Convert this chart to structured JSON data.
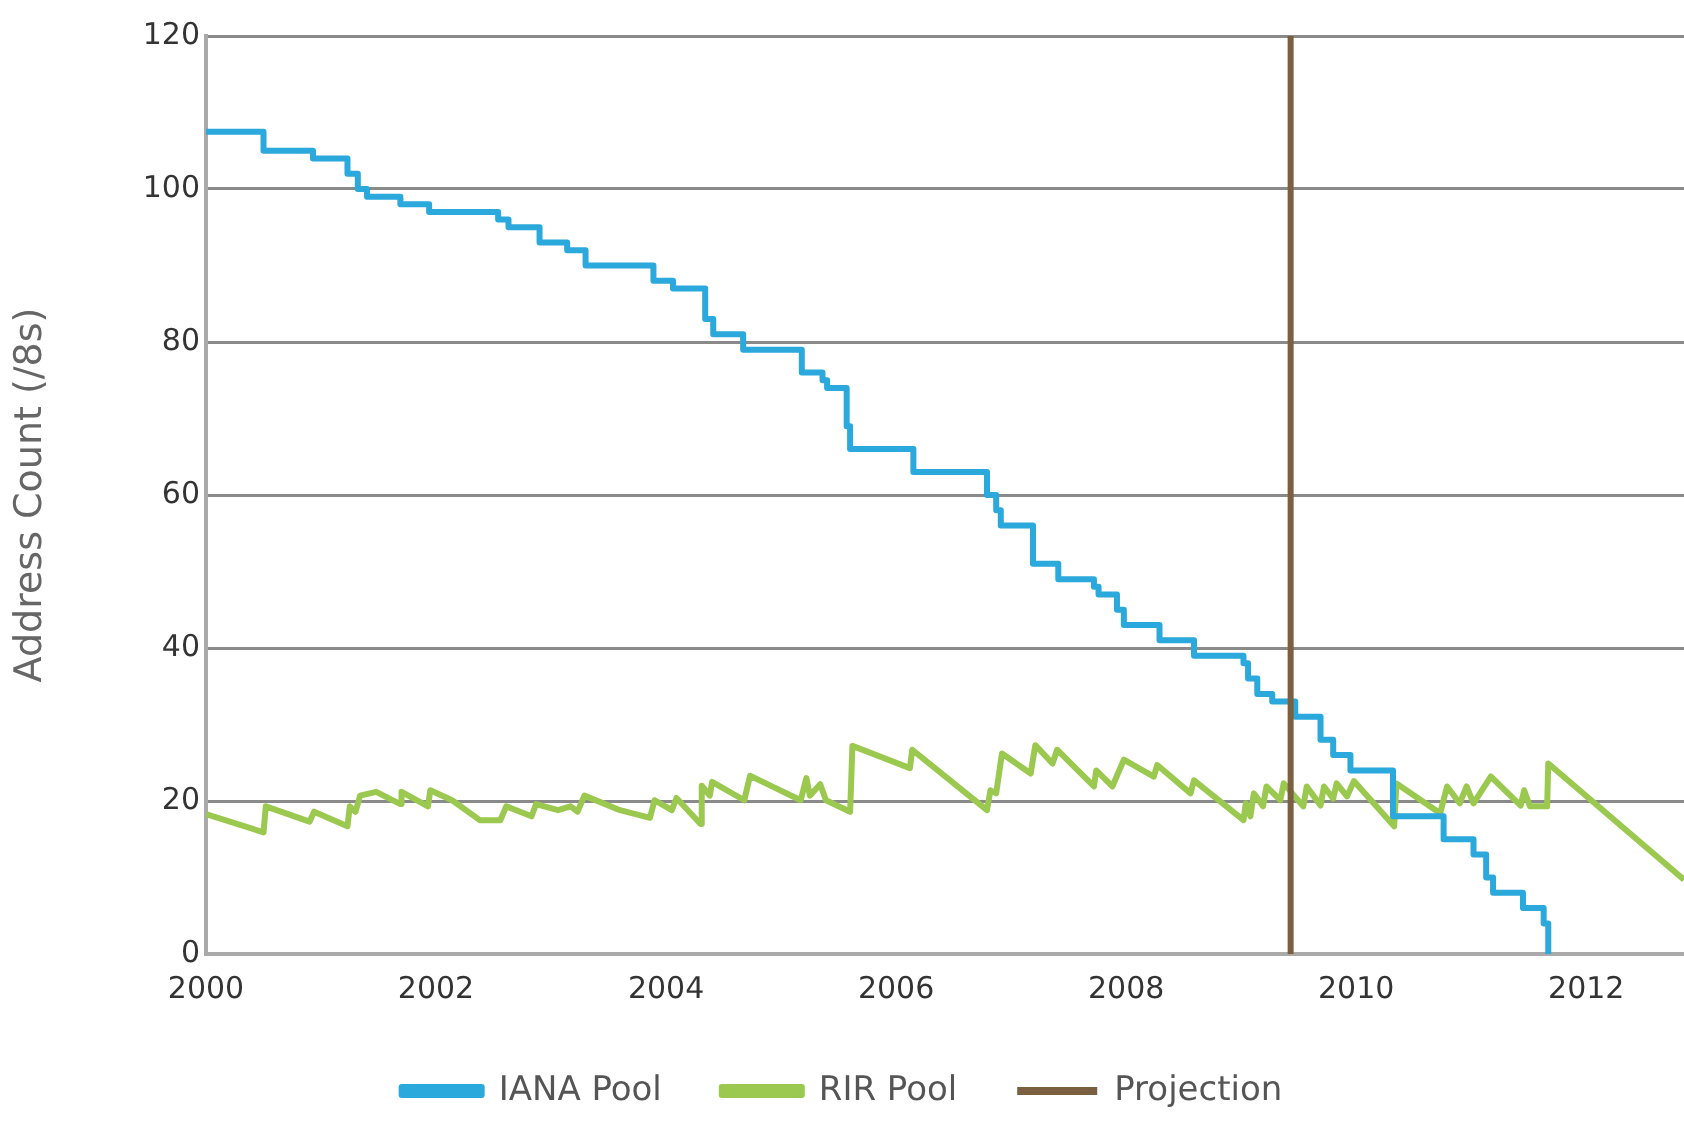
{
  "chart_data": {
    "type": "line",
    "ylabel": "Address Count (/8s)",
    "xlim": [
      2000,
      2012.85
    ],
    "xticks": [
      2000,
      2002,
      2004,
      2006,
      2008,
      2010,
      2012
    ],
    "ylim": [
      0,
      120
    ],
    "yticks": [
      0,
      20,
      40,
      60,
      80,
      100,
      120
    ],
    "grid": "y",
    "legend": "bottom",
    "marker": "none",
    "line_style": "solid",
    "series": [
      {
        "name": "IANA Pool",
        "type": "step",
        "color": "#2ba8dc",
        "x": [
          2000,
          2000.5,
          2000.93,
          2001.23,
          2001.32,
          2001.4,
          2001.69,
          2001.94,
          2002.54,
          2002.63,
          2002.9,
          2003.14,
          2003.3,
          2003.89,
          2004.06,
          2004.34,
          2004.41,
          2004.67,
          2005.18,
          2005.36,
          2005.4,
          2005.57,
          2005.6,
          2006.15,
          2006.79,
          2006.87,
          2006.91,
          2007.19,
          2007.41,
          2007.72,
          2007.76,
          2007.92,
          2007.98,
          2008.29,
          2008.59,
          2009.02,
          2009.06,
          2009.14,
          2009.27,
          2009.47,
          2009.69,
          2009.8,
          2009.95,
          2010.32,
          2010.76,
          2011.02,
          2011.13,
          2011.19,
          2011.45,
          2011.63,
          2011.67
        ],
        "values": [
          107.5,
          105,
          104,
          102,
          100,
          99,
          98,
          97,
          96,
          95,
          93,
          92,
          90,
          88,
          87,
          83,
          81,
          79,
          76,
          75,
          74,
          69,
          66,
          63,
          60,
          58,
          56,
          51,
          49,
          48,
          47,
          45,
          43,
          41,
          39,
          38,
          36,
          34,
          33,
          31,
          28,
          26,
          24,
          18,
          15,
          13,
          10,
          8,
          6,
          4,
          0
        ]
      },
      {
        "name": "RIR Pool",
        "type": "line",
        "color": "#9bc94f",
        "x": [
          2000,
          2000.5,
          2000.52,
          2000.9,
          2000.94,
          2001.23,
          2001.25,
          2001.3,
          2001.34,
          2001.48,
          2001.69,
          2001.7,
          2001.93,
          2001.95,
          2002.14,
          2002.38,
          2002.56,
          2002.61,
          2002.83,
          2002.87,
          2003.06,
          2003.17,
          2003.23,
          2003.29,
          2003.6,
          2003.86,
          2003.9,
          2004.05,
          2004.09,
          2004.3,
          2004.31,
          2004.38,
          2004.4,
          2004.68,
          2004.73,
          2005.17,
          2005.22,
          2005.25,
          2005.34,
          2005.39,
          2005.6,
          2005.62,
          2006.12,
          2006.14,
          2006.79,
          2006.82,
          2006.87,
          2006.92,
          2007.17,
          2007.21,
          2007.36,
          2007.4,
          2007.72,
          2007.74,
          2007.88,
          2007.98,
          2008.24,
          2008.27,
          2008.56,
          2008.59,
          2009.02,
          2009.04,
          2009.08,
          2009.11,
          2009.19,
          2009.22,
          2009.34,
          2009.37,
          2009.54,
          2009.57,
          2009.69,
          2009.72,
          2009.8,
          2009.83,
          2009.92,
          2009.98,
          2010.33,
          2010.35,
          2010.73,
          2010.79,
          2010.9,
          2010.96,
          2011.02,
          2011.17,
          2011.43,
          2011.46,
          2011.51,
          2011.66,
          2011.67,
          2012.85
        ],
        "values": [
          18.3,
          15.9,
          19.3,
          17.3,
          18.6,
          16.7,
          19.3,
          18.6,
          20.7,
          21.2,
          19.6,
          21.2,
          19.3,
          21.4,
          20.1,
          17.5,
          17.5,
          19.3,
          18,
          19.6,
          18.8,
          19.3,
          18.6,
          20.7,
          18.8,
          17.8,
          20.1,
          18.8,
          20.4,
          17,
          22,
          20.7,
          22.5,
          20.1,
          23.3,
          20.1,
          23,
          20.7,
          22.2,
          20.1,
          18.6,
          27.2,
          24.3,
          26.7,
          18.8,
          21.4,
          21,
          26.2,
          23.6,
          27.3,
          24.9,
          26.7,
          21.9,
          24,
          21.9,
          25.4,
          23.2,
          24.7,
          21,
          22.7,
          17.5,
          19.7,
          18,
          21,
          19.3,
          21.9,
          20.1,
          22.3,
          19.3,
          21.9,
          19.4,
          21.9,
          20.3,
          22.3,
          20.6,
          22.6,
          16.7,
          22.3,
          18.4,
          21.9,
          19.7,
          21.9,
          19.7,
          23.2,
          19.4,
          21.4,
          19.3,
          19.3,
          24.9,
          9.7
        ]
      }
    ],
    "ref_lines": [
      {
        "axis": "x",
        "value": 2009.43,
        "label": "Projection",
        "color": "#7a6040",
        "line_style": "solid"
      }
    ]
  }
}
